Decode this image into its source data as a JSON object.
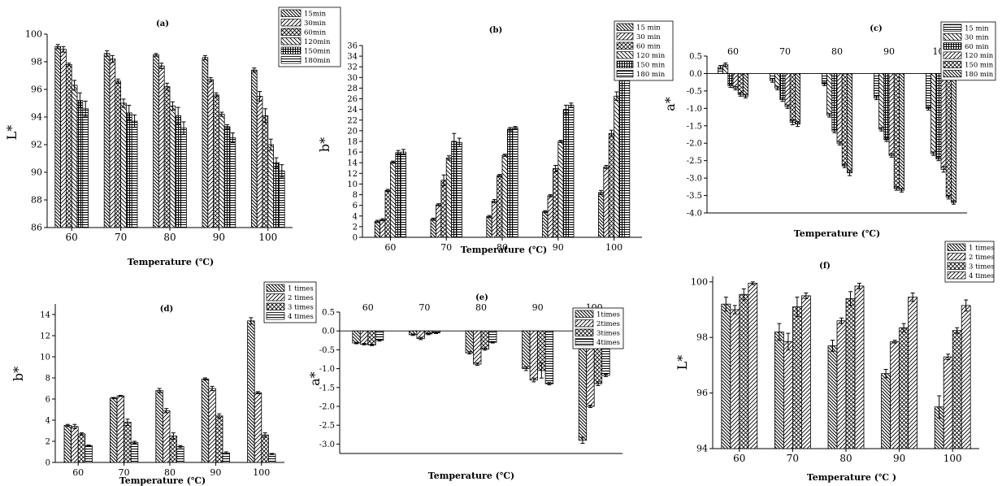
{
  "colors": {
    "ink": "#000000",
    "paper": "#ffffff"
  },
  "chart_data": [
    {
      "id": "a",
      "type": "bar",
      "title": "(a)",
      "xlabel": "Temperature (℃)",
      "ylabel": "L*",
      "ylim": [
        86,
        100
      ],
      "yticks": [
        "86",
        "88",
        "90",
        "92",
        "94",
        "96",
        "98",
        "100"
      ],
      "categories": [
        "60",
        "70",
        "80",
        "90",
        "100"
      ],
      "legend_position": "top-right",
      "series": [
        {
          "name": "15min",
          "pattern": "dense-backslash",
          "values": [
            99.1,
            98.6,
            98.5,
            98.3,
            97.4
          ],
          "errors": [
            0.15,
            0.2,
            0.1,
            0.15,
            0.15
          ]
        },
        {
          "name": "30min",
          "pattern": "slash",
          "values": [
            98.9,
            98.2,
            97.7,
            96.7,
            95.5
          ],
          "errors": [
            0.2,
            0.25,
            0.2,
            0.15,
            0.35
          ]
        },
        {
          "name": "60min",
          "pattern": "cross",
          "values": [
            97.8,
            96.6,
            96.2,
            95.6,
            94.1
          ],
          "errors": [
            0.1,
            0.15,
            0.25,
            0.15,
            0.5
          ]
        },
        {
          "name": "120min",
          "pattern": "backslash",
          "values": [
            96.3,
            95.0,
            94.8,
            94.2,
            92.0
          ],
          "errors": [
            0.35,
            0.3,
            0.3,
            0.15,
            0.4
          ]
        },
        {
          "name": "150min",
          "pattern": "grid",
          "values": [
            95.2,
            94.3,
            94.1,
            93.3,
            90.7
          ],
          "errors": [
            0.55,
            0.55,
            0.6,
            0.15,
            0.35
          ]
        },
        {
          "name": "180min",
          "pattern": "hlines",
          "values": [
            94.6,
            93.7,
            93.2,
            92.5,
            90.1
          ],
          "errors": [
            0.55,
            0.45,
            0.45,
            0.35,
            0.45
          ]
        }
      ]
    },
    {
      "id": "b",
      "type": "bar",
      "title": "(b)",
      "xlabel": "Temperature (℃)",
      "ylabel": "b*",
      "ylim": [
        0,
        36
      ],
      "yticks": [
        "0",
        "2",
        "4",
        "6",
        "8",
        "10",
        "12",
        "14",
        "16",
        "18",
        "20",
        "22",
        "24",
        "26",
        "28",
        "30",
        "32",
        "34",
        "36"
      ],
      "categories": [
        "60",
        "70",
        "80",
        "90",
        "100"
      ],
      "legend_position": "top-right",
      "series": [
        {
          "name": "15 min",
          "pattern": "dense-backslash",
          "values": [
            3.0,
            3.4,
            3.9,
            4.8,
            8.4
          ],
          "errors": [
            0.2,
            0.2,
            0.2,
            0.2,
            0.4
          ]
        },
        {
          "name": "30 min",
          "pattern": "slash",
          "values": [
            3.3,
            6.1,
            6.8,
            7.8,
            13.2
          ],
          "errors": [
            0.2,
            0.2,
            0.3,
            0.2,
            0.3
          ]
        },
        {
          "name": "60 min",
          "pattern": "cross",
          "values": [
            8.8,
            10.7,
            11.6,
            12.9,
            19.5
          ],
          "errors": [
            0.2,
            1.0,
            0.2,
            0.6,
            0.6
          ]
        },
        {
          "name": "120 min",
          "pattern": "backslash",
          "values": [
            14.1,
            14.9,
            15.4,
            18.0,
            26.5
          ],
          "errors": [
            0.2,
            0.4,
            0.2,
            0.2,
            0.8
          ]
        },
        {
          "name": "150 min",
          "pattern": "grid",
          "values": [
            15.9,
            18.0,
            20.3,
            24.0,
            34.6
          ],
          "errors": [
            0.4,
            1.5,
            0.3,
            0.8,
            0.9
          ]
        },
        {
          "name": "180 min",
          "pattern": "hlines",
          "values": [
            16.0,
            17.8,
            20.6,
            24.8,
            34.5
          ],
          "errors": [
            0.5,
            0.8,
            0.2,
            0.4,
            1.1
          ]
        }
      ]
    },
    {
      "id": "c",
      "type": "bar",
      "title": "(c)",
      "xlabel": "Temperature (℃)",
      "ylabel": "a*",
      "ylim": [
        -4.0,
        0.5
      ],
      "yticks": [
        "0.5",
        "0.0",
        "-0.5",
        "-1.0",
        "-1.5",
        "-2.0",
        "-2.5",
        "-3.0",
        "-3.5",
        "-4.0"
      ],
      "categories": [
        "60",
        "70",
        "80",
        "90",
        "100"
      ],
      "categories_at_top": true,
      "legend_position": "top-right",
      "series": [
        {
          "name": "15 min",
          "pattern": "hlines",
          "values": [
            0.18,
            -0.2,
            -0.3,
            -0.7,
            -1.0
          ],
          "errors": [
            0.05,
            0.05,
            0.05,
            0.05,
            0.05
          ]
        },
        {
          "name": "30 min",
          "pattern": "backslash",
          "values": [
            0.25,
            -0.42,
            -1.2,
            -1.6,
            -2.3
          ],
          "errors": [
            0.05,
            0.05,
            0.05,
            0.05,
            0.05
          ]
        },
        {
          "name": "60 min",
          "pattern": "grid",
          "values": [
            -0.35,
            -0.75,
            -1.65,
            -1.9,
            -2.45
          ],
          "errors": [
            0.05,
            0.05,
            0.05,
            0.05,
            0.05
          ]
        },
        {
          "name": "120 min",
          "pattern": "slash",
          "values": [
            -0.42,
            -0.95,
            -2.0,
            -2.35,
            -2.75
          ],
          "errors": [
            0.05,
            0.05,
            0.05,
            0.05,
            0.08
          ]
        },
        {
          "name": "150 min",
          "pattern": "cross",
          "values": [
            -0.6,
            -1.4,
            -2.65,
            -3.3,
            -3.55
          ],
          "errors": [
            0.05,
            0.07,
            0.05,
            0.05,
            0.05
          ]
        },
        {
          "name": "180 min",
          "pattern": "dense-backslash",
          "values": [
            -0.65,
            -1.45,
            -2.85,
            -3.35,
            -3.7
          ],
          "errors": [
            0.05,
            0.07,
            0.08,
            0.05,
            0.05
          ]
        }
      ]
    },
    {
      "id": "d",
      "type": "bar",
      "title": "(d)",
      "xlabel": "Temperature (℃)",
      "ylabel": "b*",
      "ylim": [
        0,
        15
      ],
      "yticks": [
        "0",
        "2",
        "4",
        "6",
        "8",
        "10",
        "12",
        "14"
      ],
      "categories": [
        "60",
        "70",
        "80",
        "90",
        "100"
      ],
      "legend_position": "top-right",
      "series": [
        {
          "name": "1 times",
          "pattern": "dense-backslash",
          "values": [
            3.5,
            6.1,
            6.8,
            7.9,
            13.4
          ],
          "errors": [
            0.1,
            0.05,
            0.2,
            0.1,
            0.3
          ]
        },
        {
          "name": "2 times",
          "pattern": "slash",
          "values": [
            3.4,
            6.3,
            4.9,
            7.0,
            6.6
          ],
          "errors": [
            0.2,
            0.05,
            0.2,
            0.2,
            0.1
          ]
        },
        {
          "name": "3 times",
          "pattern": "cross",
          "values": [
            2.7,
            3.8,
            2.5,
            4.4,
            2.6
          ],
          "errors": [
            0.1,
            0.3,
            0.3,
            0.2,
            0.2
          ]
        },
        {
          "name": "4 times",
          "pattern": "hlines",
          "values": [
            1.6,
            1.9,
            1.5,
            0.9,
            0.8
          ],
          "errors": [
            0.05,
            0.1,
            0.1,
            0.1,
            0.05
          ]
        }
      ]
    },
    {
      "id": "e",
      "type": "bar",
      "title": "(e)",
      "xlabel": "Temperature (℃)",
      "ylabel": "a*",
      "ylim": [
        -3.25,
        0.5
      ],
      "yticks": [
        "0.5",
        "0.0",
        "-0.5",
        "-1.0",
        "-1.5",
        "-2.0",
        "-2.5",
        "-3.0"
      ],
      "categories": [
        "60",
        "70",
        "80",
        "90",
        "100"
      ],
      "categories_at_top": true,
      "legend_position": "top-right",
      "series": [
        {
          "name": "1times",
          "pattern": "dense-backslash",
          "values": [
            -0.32,
            -0.1,
            -0.58,
            -1.0,
            -2.9
          ],
          "errors": [
            0.02,
            0.02,
            0.03,
            0.05,
            0.08
          ]
        },
        {
          "name": "2times",
          "pattern": "slash",
          "values": [
            -0.35,
            -0.2,
            -0.88,
            -1.3,
            -2.0
          ],
          "errors": [
            0.02,
            0.03,
            0.03,
            0.05,
            0.03
          ]
        },
        {
          "name": "3times",
          "pattern": "cross",
          "values": [
            -0.37,
            -0.08,
            -0.48,
            -1.05,
            -1.4
          ],
          "errors": [
            0.02,
            0.02,
            0.03,
            0.2,
            0.05
          ]
        },
        {
          "name": "4times",
          "pattern": "hlines",
          "values": [
            -0.25,
            -0.05,
            -0.3,
            -1.4,
            -1.18
          ],
          "errors": [
            0.02,
            0.02,
            0.02,
            0.03,
            0.03
          ]
        }
      ]
    },
    {
      "id": "f",
      "type": "bar",
      "title": "(f)",
      "xlabel": "Temperature (℃ )",
      "ylabel": "L*",
      "ylim": [
        94,
        100.2
      ],
      "yticks": [
        "94",
        "96",
        "98",
        "100"
      ],
      "categories": [
        "60",
        "70",
        "80",
        "90",
        "100"
      ],
      "legend_position": "top-right",
      "series": [
        {
          "name": "1 times",
          "pattern": "dense-backslash",
          "values": [
            99.2,
            98.2,
            97.7,
            96.7,
            95.5
          ],
          "errors": [
            0.25,
            0.3,
            0.2,
            0.15,
            0.4
          ]
        },
        {
          "name": "2 times",
          "pattern": "slash",
          "values": [
            99.0,
            97.85,
            98.6,
            97.85,
            97.3
          ],
          "errors": [
            0.15,
            0.3,
            0.1,
            0.05,
            0.1
          ]
        },
        {
          "name": "3 times",
          "pattern": "cross",
          "values": [
            99.55,
            99.1,
            99.4,
            98.35,
            98.25
          ],
          "errors": [
            0.2,
            0.35,
            0.25,
            0.15,
            0.1
          ]
        },
        {
          "name": "4 times",
          "pattern": "slash",
          "values": [
            99.95,
            99.5,
            99.85,
            99.45,
            99.15
          ],
          "errors": [
            0.05,
            0.1,
            0.1,
            0.15,
            0.2
          ]
        }
      ]
    }
  ]
}
